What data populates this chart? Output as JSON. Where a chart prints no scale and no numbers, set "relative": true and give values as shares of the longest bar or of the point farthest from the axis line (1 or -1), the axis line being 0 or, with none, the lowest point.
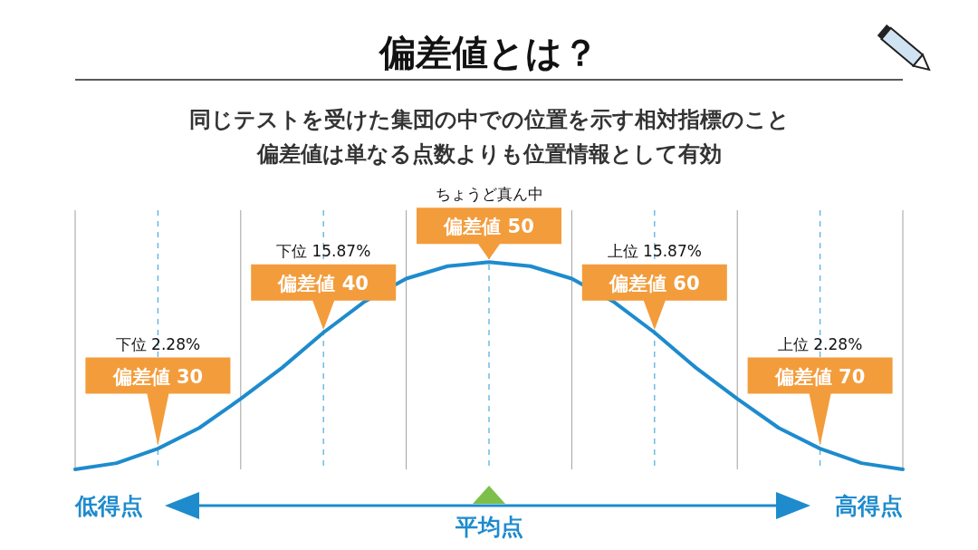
{
  "chart_data": {
    "type": "line",
    "title": "偏差値とは？",
    "subtitle": "同じテストを受けた集団の中での位置を示す相対指標のこと偏差値は単なる点数よりも位置情報として有効",
    "relative": true,
    "grid": "x",
    "xlabel": "平均点",
    "categories": [
      null,
      null,
      null,
      null,
      null,
      null,
      null,
      null,
      null,
      null,
      null,
      null,
      null,
      null,
      null,
      null,
      null,
      null,
      null,
      null,
      null
    ],
    "series": [
      {
        "color": "#1e8bcd",
        "values": [
          0,
          0.03,
          0.1,
          0.2,
          0.34,
          0.49,
          0.66,
          0.81,
          0.92,
          0.98,
          1,
          0.98,
          0.92,
          0.81,
          0.66,
          0.49,
          0.34,
          0.2,
          0.1,
          0.03,
          0
        ]
      }
    ],
    "annotations": [
      "下位 2.28%",
      "偏差値 30",
      "下位 15.87%",
      "偏差値 40",
      "ちょうど真ん中",
      "偏差値 50",
      "上位 15.87%",
      "偏差値 60",
      "上位 2.28%",
      "偏差値 70",
      "低得点",
      "高得点"
    ]
  }
}
